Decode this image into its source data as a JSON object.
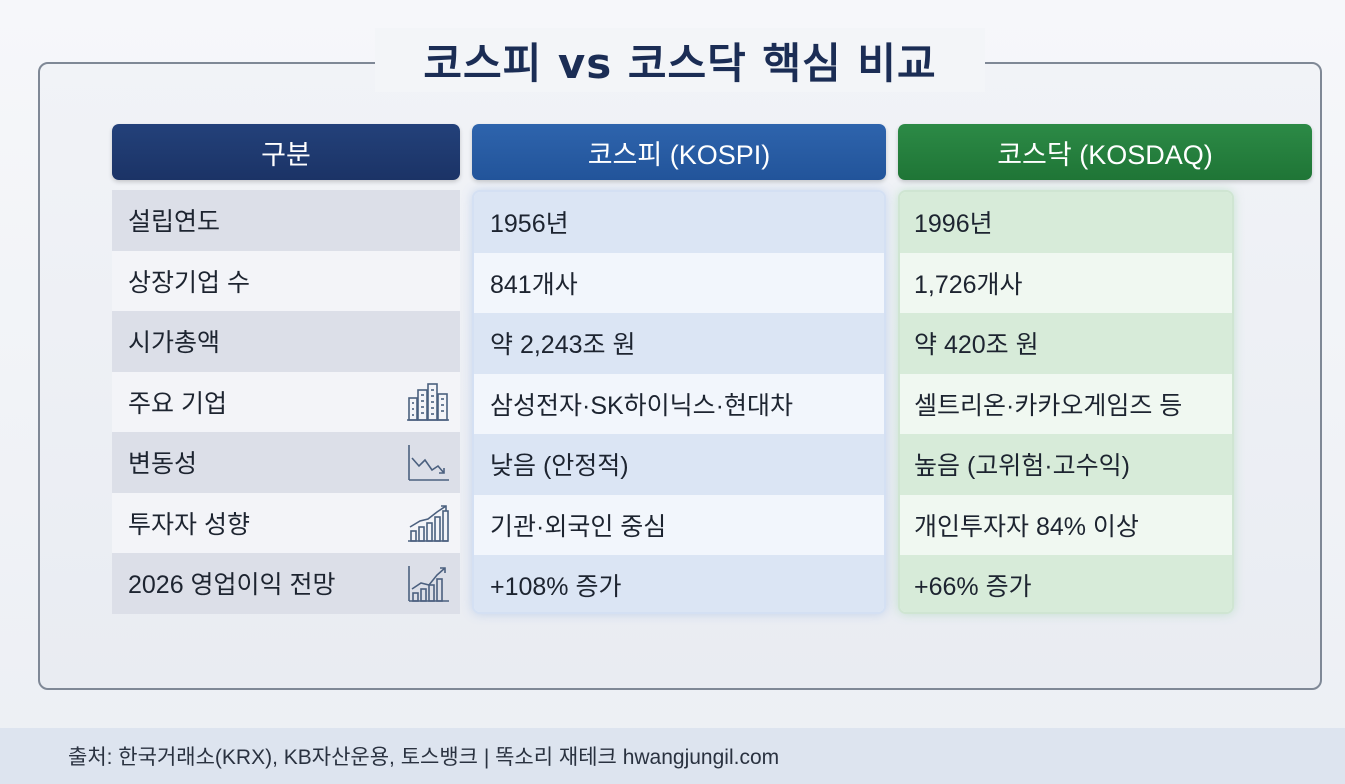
{
  "title": "코스피 vs 코스닥 핵심 비교",
  "headers": {
    "label": "구분",
    "kospi": "코스피 (KOSPI)",
    "kosdaq": "코스닥 (KOSDAQ)"
  },
  "rows": [
    {
      "label": "설립연도",
      "kospi": "1956년",
      "kosdaq": "1996년",
      "icon": ""
    },
    {
      "label": "상장기업 수",
      "kospi": "841개사",
      "kosdaq": "1,726개사",
      "icon": ""
    },
    {
      "label": "시가총액",
      "kospi": "약 2,243조 원",
      "kosdaq": "약 420조 원",
      "icon": ""
    },
    {
      "label": "주요 기업",
      "kospi": "삼성전자·SK하이닉스·현대차",
      "kosdaq": "셀트리온·카카오게임즈 등",
      "icon": "buildings-icon"
    },
    {
      "label": "변동성",
      "kospi": "낮음 (안정적)",
      "kosdaq": "높음 (고위험·고수익)",
      "icon": "trend-down-chart-icon"
    },
    {
      "label": "투자자 성향",
      "kospi": "기관·외국인 중심",
      "kosdaq": "개인투자자 84% 이상",
      "icon": "bar-chart-up-icon"
    },
    {
      "label": "2026 영업이익 전망",
      "kospi": "+108% 증가",
      "kosdaq": "+66% 증가",
      "icon": "bar-chart-growth-icon"
    }
  ],
  "footer": "출처: 한국거래소(KRX), KB자산운용, 토스뱅크 | 똑소리 재테크 hwangjungil.com",
  "colors": {
    "title": "#1b2d55",
    "label_header": "#1b3366",
    "kospi_header": "#22549a",
    "kosdaq_header": "#1f7536"
  }
}
